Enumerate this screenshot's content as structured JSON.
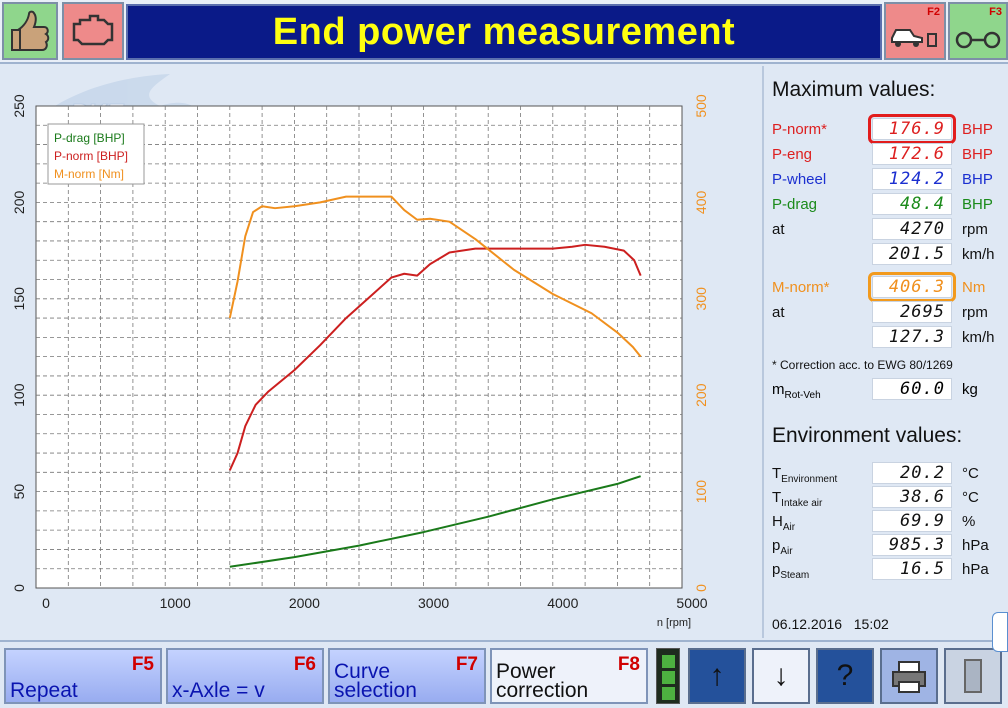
{
  "header": {
    "title": "End power measurement",
    "left_buttons": [
      {
        "icon": "thumbs-up-icon"
      },
      {
        "icon": "engine-warning-icon"
      }
    ],
    "right_buttons": [
      {
        "key": "F2",
        "icon": "vehicle-on-dyno-icon"
      },
      {
        "key": "F3",
        "icon": "dyno-rollers-icon"
      }
    ]
  },
  "watermark": "PKE",
  "chart_data": {
    "type": "line",
    "xlabel": "n [rpm]",
    "x_ticks": [
      0,
      1000,
      2000,
      3000,
      4000,
      5000
    ],
    "xlim": [
      0,
      5000
    ],
    "y_left_ticks": [
      0,
      50,
      100,
      150,
      200,
      250
    ],
    "ylim_left": [
      0,
      250
    ],
    "y_right_ticks": [
      0,
      100,
      200,
      300,
      400,
      500
    ],
    "ylim_right": [
      0,
      500
    ],
    "grid": true,
    "legend_position": "top-left",
    "series": [
      {
        "name": "P-drag [BHP]",
        "axis": "left",
        "color": "#1a7a1a",
        "x": [
          1500,
          2000,
          2500,
          3000,
          3500,
          4000,
          4500,
          4680
        ],
        "y": [
          11,
          16,
          22,
          29,
          37,
          46,
          54,
          58
        ]
      },
      {
        "name": "P-norm [BHP]",
        "axis": "left",
        "color": "#cc1f1f",
        "x": [
          1500,
          1560,
          1620,
          1700,
          1800,
          2000,
          2200,
          2400,
          2600,
          2750,
          2850,
          2950,
          3050,
          3200,
          3400,
          3700,
          4000,
          4150,
          4250,
          4400,
          4550,
          4630,
          4680
        ],
        "y": [
          61,
          70,
          84,
          95,
          102,
          113,
          126,
          140,
          152,
          161,
          163,
          162,
          168,
          174,
          176,
          176,
          176,
          177,
          178,
          177,
          175,
          170,
          162
        ]
      },
      {
        "name": "M-norm [Nm]",
        "axis": "right",
        "color": "#f0901e",
        "x": [
          1500,
          1560,
          1620,
          1680,
          1750,
          1850,
          2000,
          2200,
          2400,
          2600,
          2750,
          2850,
          2950,
          3050,
          3200,
          3400,
          3700,
          4000,
          4300,
          4500,
          4620,
          4680
        ],
        "y": [
          280,
          318,
          365,
          390,
          396,
          394,
          396,
          400,
          406,
          406,
          406,
          392,
          382,
          383,
          380,
          362,
          330,
          305,
          285,
          265,
          250,
          240
        ]
      }
    ]
  },
  "right_panel": {
    "max_title": "Maximum values:",
    "max_rows": [
      {
        "label": "P-norm*",
        "value": "176.9",
        "unit": "BHP",
        "color": "#dd1f1f",
        "highlight": "red"
      },
      {
        "label": "P-eng",
        "value": "172.6",
        "unit": "BHP",
        "color": "#dd1f1f"
      },
      {
        "label": "P-wheel",
        "value": "124.2",
        "unit": "BHP",
        "color": "#1b2fd0"
      },
      {
        "label": "P-drag",
        "value": "48.4",
        "unit": "BHP",
        "color": "#1a8a1a"
      },
      {
        "label": "at",
        "value": "4270",
        "unit": "rpm",
        "color": "#111111"
      },
      {
        "label": "",
        "value": "201.5",
        "unit": "km/h",
        "color": "#111111"
      }
    ],
    "torque_rows": [
      {
        "label": "M-norm*",
        "value": "406.3",
        "unit": "Nm",
        "color": "#f0901e",
        "highlight": "orange"
      },
      {
        "label": "at",
        "value": "2695",
        "unit": "rpm",
        "color": "#111111"
      },
      {
        "label": "",
        "value": "127.3",
        "unit": "km/h",
        "color": "#111111"
      }
    ],
    "correction_note": "* Correction acc. to EWG 80/1269",
    "mass": {
      "label": "m",
      "sub": "Rot-Veh",
      "value": "60.0",
      "unit": "kg"
    },
    "env_title": "Environment values:",
    "env_rows": [
      {
        "label": "T",
        "sub": "Environment",
        "value": "20.2",
        "unit": "°C"
      },
      {
        "label": "T",
        "sub": "Intake air",
        "value": "38.6",
        "unit": "°C"
      },
      {
        "label": "H",
        "sub": "Air",
        "value": "69.9",
        "unit": "%"
      },
      {
        "label": "p",
        "sub": "Air",
        "value": "985.3",
        "unit": "hPa"
      },
      {
        "label": "p",
        "sub": "Steam",
        "value": "16.5",
        "unit": "hPa"
      }
    ],
    "date": "06.12.2016",
    "time": "15:02"
  },
  "footer": {
    "buttons": [
      {
        "label": "Repeat",
        "key": "F5"
      },
      {
        "label": "x-Axle = v",
        "key": "F6"
      },
      {
        "label_line1": "Curve",
        "label_line2": "selection",
        "key": "F7"
      },
      {
        "label_line1": "Power",
        "label_line2": "correction",
        "key": "F8"
      }
    ],
    "icons": [
      "arrow-up-icon",
      "arrow-down-icon",
      "help-icon",
      "printer-icon",
      "door-exit-icon"
    ]
  }
}
